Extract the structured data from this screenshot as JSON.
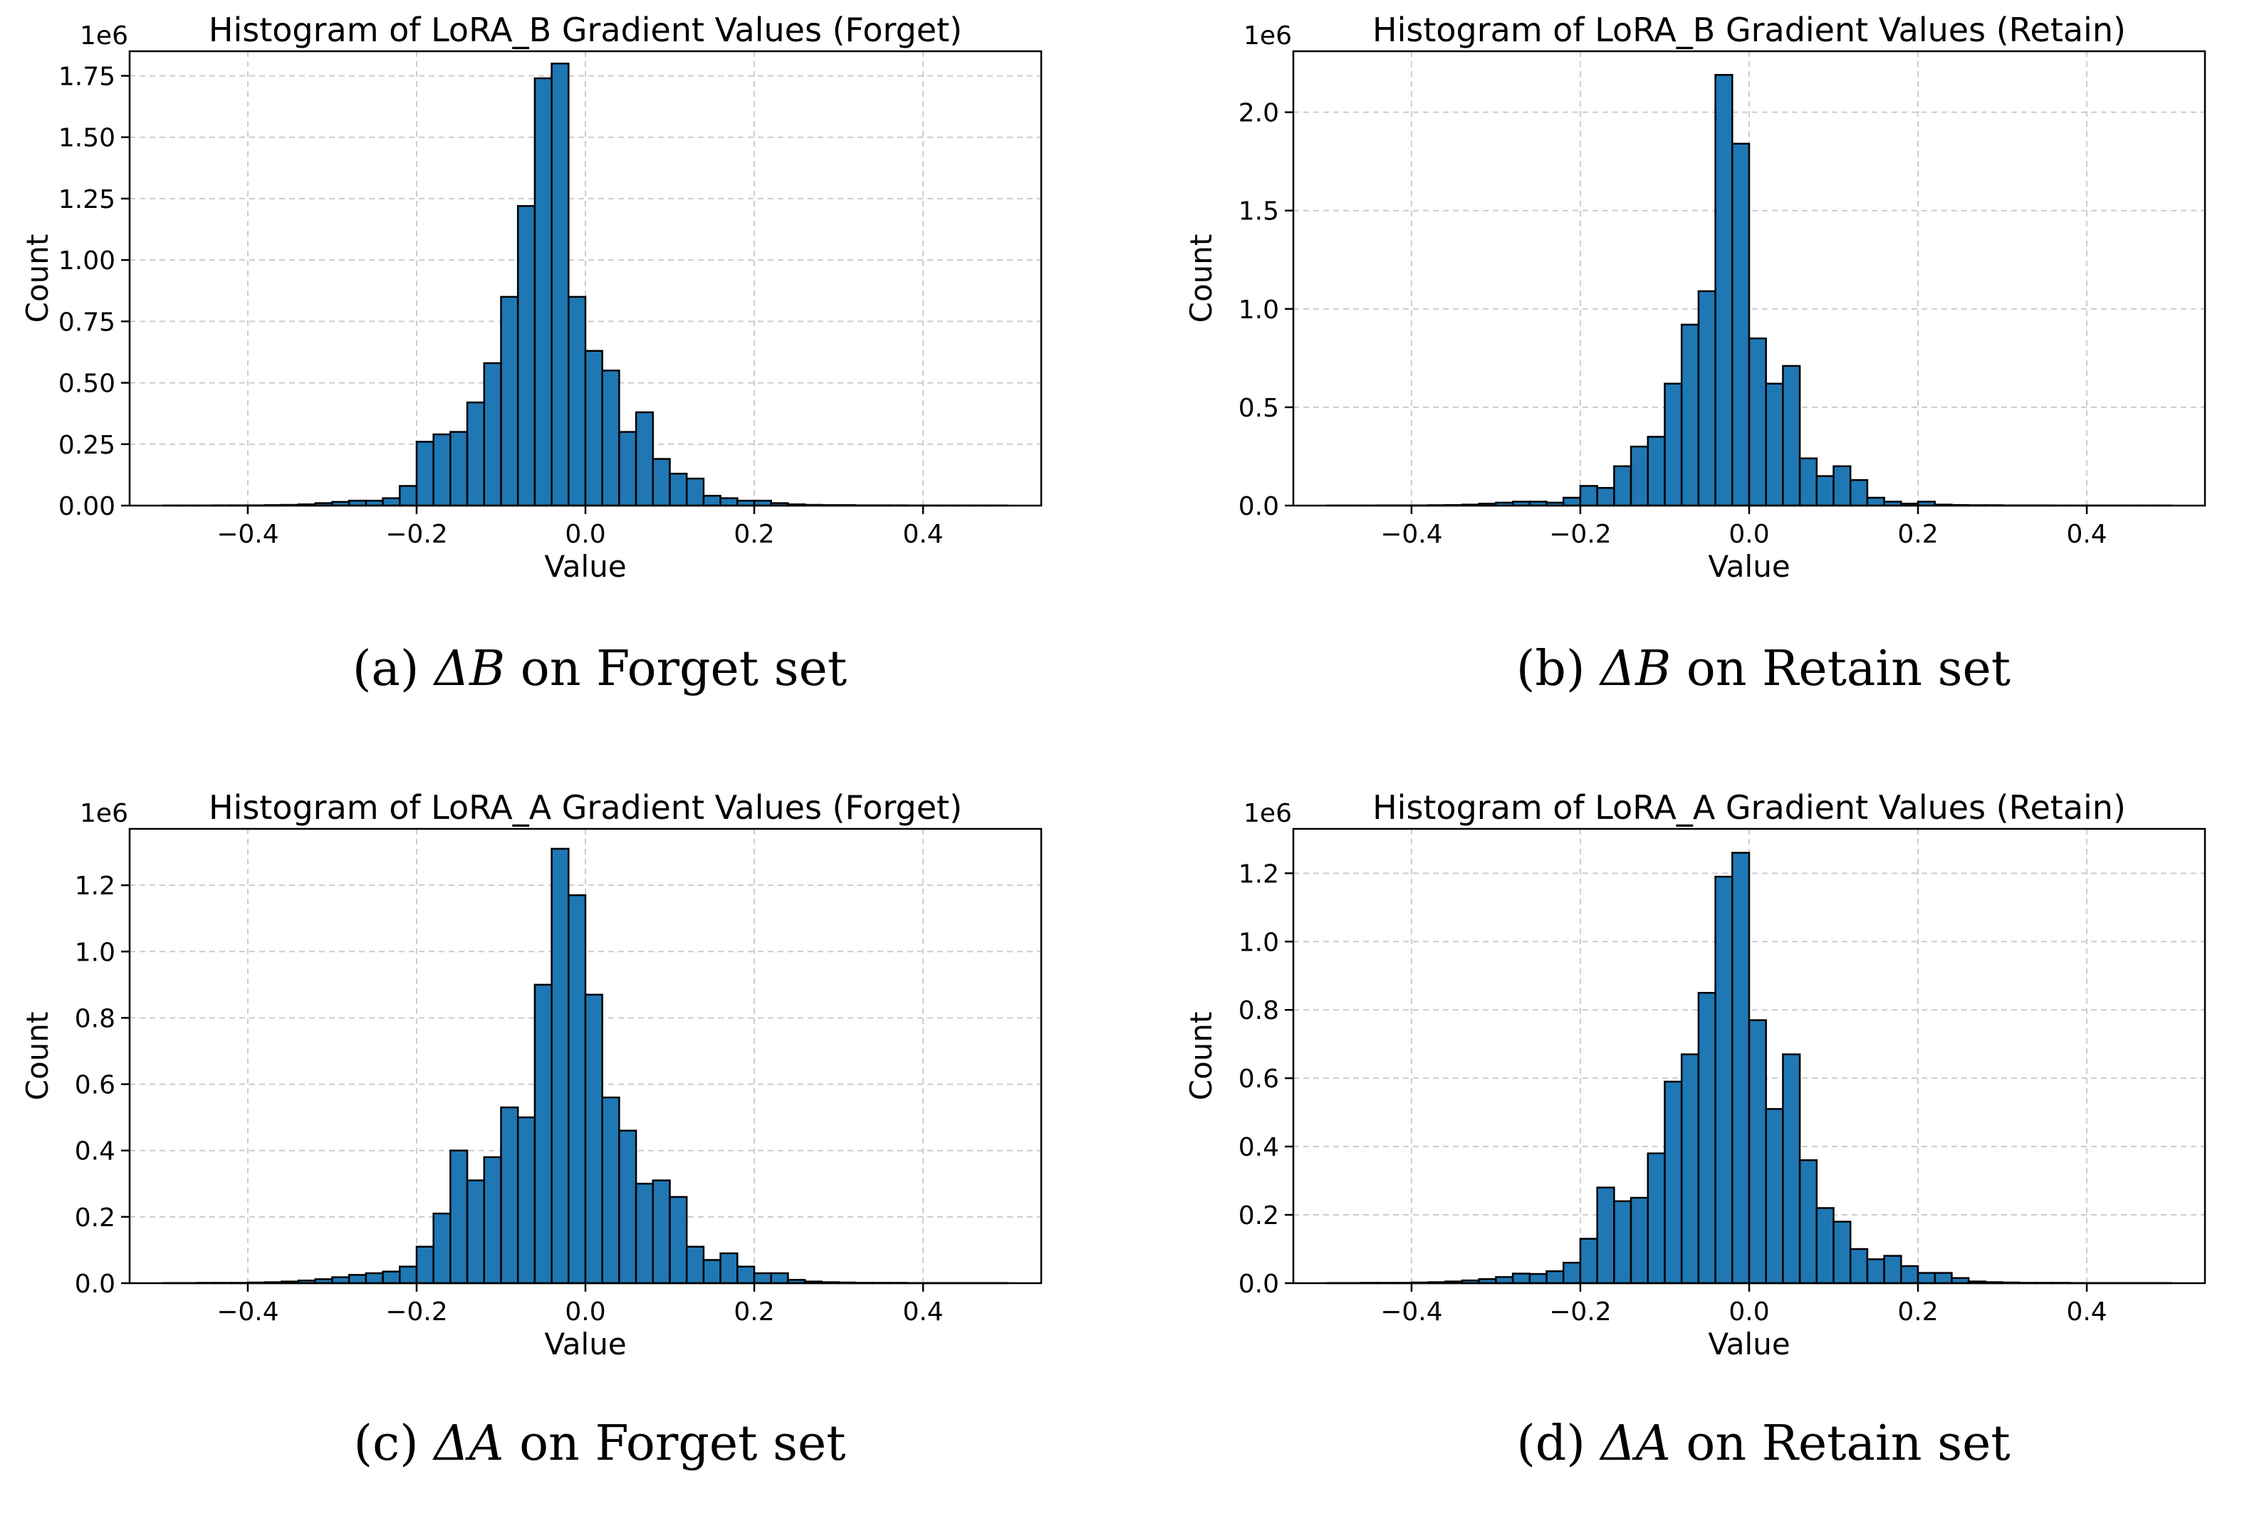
{
  "colors": {
    "bar": "#1f77b4",
    "edge": "#000000",
    "grid": "#cccccc"
  },
  "chart_data": [
    {
      "type": "bar",
      "title": "Histogram of LoRA_B Gradient Values (Forget)",
      "xlabel": "Value",
      "ylabel": "Count",
      "y_multiplier": "1e6",
      "caption": {
        "label": "(a)",
        "symbol": "ΔB",
        "text": "on Forget set"
      },
      "xlim": [
        -0.54,
        0.54
      ],
      "ylim": [
        0,
        1.85
      ],
      "xticks": [
        -0.4,
        -0.2,
        0.0,
        0.2,
        0.4
      ],
      "xtick_labels": [
        "−0.4",
        "−0.2",
        "0.0",
        "0.2",
        "0.4"
      ],
      "yticks": [
        0,
        0.25,
        0.5,
        0.75,
        1.0,
        1.25,
        1.5,
        1.75
      ],
      "ytick_labels": [
        "0.00",
        "0.25",
        "0.50",
        "0.75",
        "1.00",
        "1.25",
        "1.50",
        "1.75"
      ],
      "grid": true,
      "bin_edges": [
        -0.5,
        0.5
      ],
      "values": [
        0.0005,
        0.0005,
        0.0005,
        0.001,
        0.001,
        0.001,
        0.002,
        0.003,
        0.005,
        0.01,
        0.015,
        0.02,
        0.02,
        0.03,
        0.08,
        0.26,
        0.29,
        0.3,
        0.42,
        0.58,
        0.85,
        1.22,
        1.74,
        1.8,
        0.85,
        0.63,
        0.55,
        0.3,
        0.38,
        0.19,
        0.13,
        0.11,
        0.04,
        0.03,
        0.02,
        0.02,
        0.01,
        0.005,
        0.003,
        0.002,
        0.002,
        0.001,
        0.001,
        0.001,
        0.0005,
        0.0005,
        0.0005,
        0.0005,
        0.0005,
        0.0005
      ]
    },
    {
      "type": "bar",
      "title": "Histogram of LoRA_B Gradient Values (Retain)",
      "xlabel": "Value",
      "ylabel": "Count",
      "y_multiplier": "1e6",
      "caption": {
        "label": "(b)",
        "symbol": "ΔB",
        "text": "on Retain set"
      },
      "xlim": [
        -0.54,
        0.54
      ],
      "ylim": [
        0,
        2.31
      ],
      "xticks": [
        -0.4,
        -0.2,
        0.0,
        0.2,
        0.4
      ],
      "xtick_labels": [
        "−0.4",
        "−0.2",
        "0.0",
        "0.2",
        "0.4"
      ],
      "yticks": [
        0,
        0.5,
        1.0,
        1.5,
        2.0
      ],
      "ytick_labels": [
        "0.0",
        "0.5",
        "1.0",
        "1.5",
        "2.0"
      ],
      "grid": true,
      "bin_edges": [
        -0.5,
        0.5
      ],
      "values": [
        0.0005,
        0.0005,
        0.0005,
        0.001,
        0.001,
        0.001,
        0.002,
        0.003,
        0.005,
        0.01,
        0.015,
        0.02,
        0.02,
        0.015,
        0.04,
        0.1,
        0.09,
        0.2,
        0.3,
        0.35,
        0.62,
        0.92,
        1.09,
        2.19,
        1.84,
        0.85,
        0.62,
        0.71,
        0.24,
        0.15,
        0.2,
        0.13,
        0.04,
        0.02,
        0.01,
        0.02,
        0.005,
        0.003,
        0.002,
        0.002,
        0.001,
        0.001,
        0.001,
        0.0005,
        0.0005,
        0.0005,
        0.0005,
        0.0005,
        0.0005,
        0.0005
      ]
    },
    {
      "type": "bar",
      "title": "Histogram of LoRA_A Gradient Values (Forget)",
      "xlabel": "Value",
      "ylabel": "Count",
      "y_multiplier": "1e6",
      "caption": {
        "label": "(c)",
        "symbol": "ΔA",
        "text": "on Forget set"
      },
      "xlim": [
        -0.54,
        0.54
      ],
      "ylim": [
        0,
        1.37
      ],
      "xticks": [
        -0.4,
        -0.2,
        0.0,
        0.2,
        0.4
      ],
      "xtick_labels": [
        "−0.4",
        "−0.2",
        "0.0",
        "0.2",
        "0.4"
      ],
      "yticks": [
        0,
        0.2,
        0.4,
        0.6,
        0.8,
        1.0,
        1.2
      ],
      "ytick_labels": [
        "0.0",
        "0.2",
        "0.4",
        "0.6",
        "0.8",
        "1.0",
        "1.2"
      ],
      "grid": true,
      "bin_edges": [
        -0.5,
        0.5
      ],
      "values": [
        0.0005,
        0.0005,
        0.001,
        0.001,
        0.001,
        0.002,
        0.003,
        0.005,
        0.008,
        0.012,
        0.018,
        0.025,
        0.03,
        0.035,
        0.05,
        0.11,
        0.21,
        0.4,
        0.31,
        0.38,
        0.53,
        0.5,
        0.9,
        1.31,
        1.17,
        0.87,
        0.56,
        0.46,
        0.3,
        0.31,
        0.26,
        0.11,
        0.07,
        0.09,
        0.05,
        0.03,
        0.03,
        0.01,
        0.005,
        0.003,
        0.002,
        0.001,
        0.001,
        0.001,
        0.0005,
        0.0005,
        0.0005,
        0.0005,
        0.0005,
        0.0005
      ]
    },
    {
      "type": "bar",
      "title": "Histogram of LoRA_A Gradient Values (Retain)",
      "xlabel": "Value",
      "ylabel": "Count",
      "y_multiplier": "1e6",
      "caption": {
        "label": "(d)",
        "symbol": "ΔA",
        "text": "on Retain set"
      },
      "xlim": [
        -0.54,
        0.54
      ],
      "ylim": [
        0,
        1.33
      ],
      "xticks": [
        -0.4,
        -0.2,
        0.0,
        0.2,
        0.4
      ],
      "xtick_labels": [
        "−0.4",
        "−0.2",
        "0.0",
        "0.2",
        "0.4"
      ],
      "yticks": [
        0,
        0.2,
        0.4,
        0.6,
        0.8,
        1.0,
        1.2
      ],
      "ytick_labels": [
        "0.0",
        "0.2",
        "0.4",
        "0.6",
        "0.8",
        "1.0",
        "1.2"
      ],
      "grid": true,
      "bin_edges": [
        -0.5,
        0.5
      ],
      "values": [
        0.0005,
        0.0005,
        0.001,
        0.001,
        0.001,
        0.002,
        0.003,
        0.005,
        0.008,
        0.012,
        0.018,
        0.028,
        0.027,
        0.035,
        0.06,
        0.13,
        0.28,
        0.24,
        0.25,
        0.38,
        0.59,
        0.67,
        0.85,
        1.19,
        1.26,
        0.77,
        0.51,
        0.67,
        0.36,
        0.22,
        0.18,
        0.1,
        0.07,
        0.08,
        0.05,
        0.03,
        0.03,
        0.015,
        0.005,
        0.003,
        0.002,
        0.001,
        0.001,
        0.001,
        0.0005,
        0.0005,
        0.0005,
        0.0005,
        0.0005,
        0.0005
      ]
    }
  ]
}
